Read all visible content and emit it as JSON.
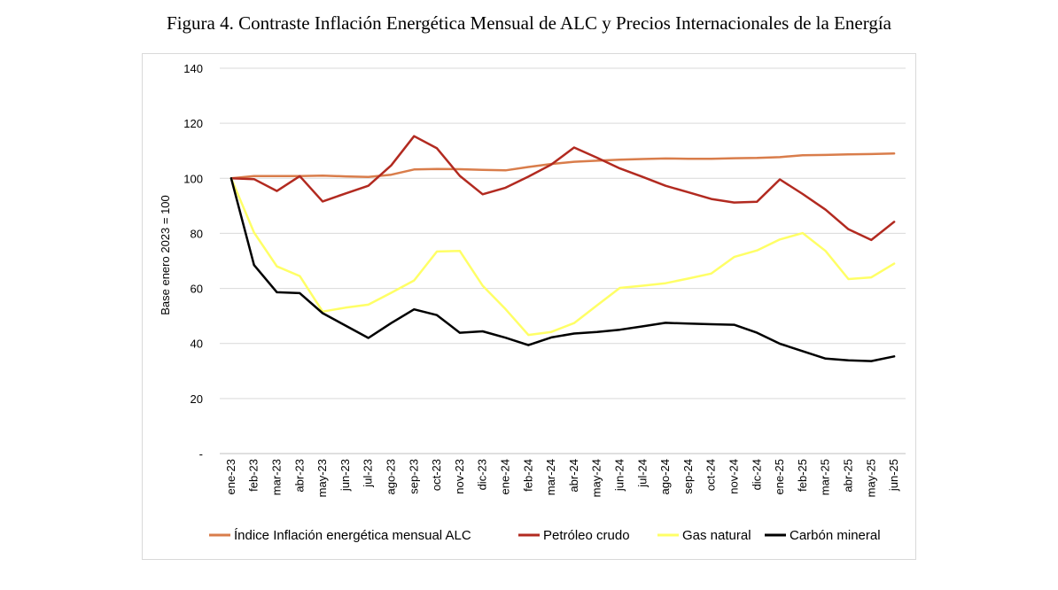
{
  "title": "Figura 4. Contraste Inflación Energética Mensual de ALC y Precios Internacionales de la Energía",
  "chart_data": {
    "type": "line",
    "ylabel": "Base enero 2023 = 100",
    "ylim": [
      0,
      140
    ],
    "yticks": [
      0,
      20,
      40,
      60,
      80,
      100,
      120,
      140
    ],
    "ytick_labels": [
      "-",
      "20",
      "40",
      "60",
      "80",
      "100",
      "120",
      "140"
    ],
    "grid": true,
    "legend_position": "bottom",
    "categories": [
      "ene-23",
      "feb-23",
      "mar-23",
      "abr-23",
      "may-23",
      "jun-23",
      "jul-23",
      "ago-23",
      "sep-23",
      "oct-23",
      "nov-23",
      "dic-23",
      "ene-24",
      "feb-24",
      "mar-24",
      "abr-24",
      "may-24",
      "jun-24",
      "jul-24",
      "ago-24",
      "sep-24",
      "oct-24",
      "nov-24",
      "dic-24",
      "ene-25",
      "feb-25",
      "mar-25",
      "abr-25",
      "may-25",
      "jun-25"
    ],
    "series": [
      {
        "name": "Índice Inflación energética mensual ALC",
        "color": "#D97D4B",
        "values": [
          100,
          100.8,
          100.8,
          100.8,
          101,
          100.7,
          100.5,
          101.3,
          103.2,
          103.4,
          103.3,
          103.1,
          102.9,
          104.1,
          105.2,
          106,
          106.4,
          106.8,
          107,
          107.2,
          107.1,
          107.1,
          107.3,
          107.4,
          107.7,
          108.4,
          108.5,
          108.7,
          108.8,
          109
        ]
      },
      {
        "name": "Petróleo crudo",
        "color": "#B22A20",
        "values": [
          100,
          99.7,
          95.4,
          100.8,
          91.6,
          94.5,
          97.3,
          104.7,
          115.3,
          110.9,
          100.9,
          94.2,
          96.6,
          100.6,
          105,
          111.2,
          107.5,
          103.6,
          100.5,
          97.3,
          94.9,
          92.5,
          91.2,
          91.5,
          99.6,
          94.3,
          88.6,
          81.5,
          77.6,
          84.2
        ]
      },
      {
        "name": "Gas natural",
        "color": "#FFFF66",
        "values": [
          100,
          80.3,
          68,
          64.5,
          51.6,
          53,
          54.1,
          58.4,
          62.9,
          73.4,
          73.6,
          61,
          52.5,
          43.1,
          44.2,
          47.4,
          53.8,
          60.2,
          61,
          61.9,
          63.6,
          65.4,
          71.4,
          73.8,
          77.8,
          80.1,
          73.6,
          63.4,
          64,
          69
        ]
      },
      {
        "name": "Carbón mineral",
        "color": "#000000",
        "values": [
          100,
          68.5,
          58.6,
          58.3,
          51,
          46.5,
          42,
          47.4,
          52.4,
          50.3,
          43.9,
          44.4,
          42.1,
          39.4,
          42.2,
          43.6,
          44.2,
          45,
          46.2,
          47.5,
          47.2,
          47,
          46.8,
          43.9,
          39.9,
          37.2,
          34.5,
          33.9,
          33.6,
          35.3
        ]
      }
    ]
  }
}
